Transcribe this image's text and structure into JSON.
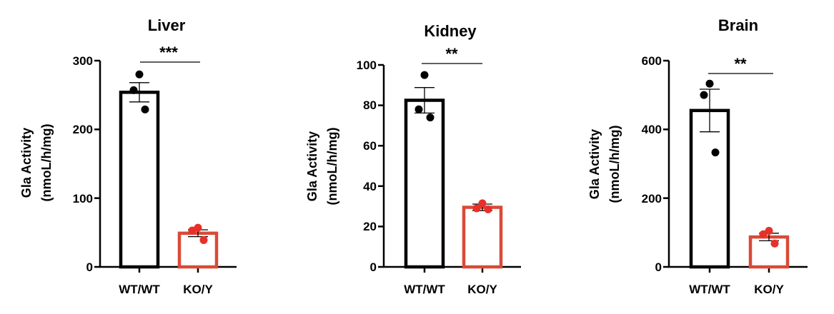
{
  "colors": {
    "wt": "#000000",
    "ko": "#d94a38",
    "ko_points": "#e8302a"
  },
  "chart_data": [
    {
      "type": "bar",
      "title": "Liver",
      "ylabel_line1": "Gla Activity",
      "ylabel_line2": "(nmoL/h/mg)",
      "categories": [
        "WT/WT",
        "KO/Y"
      ],
      "ylim": [
        0,
        300
      ],
      "yticks": [
        0,
        100,
        200,
        300
      ],
      "ytick_labels": [
        "0",
        "100",
        "200",
        "300"
      ],
      "bars": [
        {
          "group": "WT/WT",
          "mean": 254,
          "sem": 14,
          "points": [
            280,
            257,
            229
          ]
        },
        {
          "group": "KO/Y",
          "mean": 49,
          "sem": 5,
          "points": [
            57,
            53,
            39
          ]
        }
      ],
      "significance": "***"
    },
    {
      "type": "bar",
      "title": "Kidney",
      "ylabel_line1": "Gla Activity",
      "ylabel_line2": "(nmoL/h/mg)",
      "categories": [
        "WT/WT",
        "KO/Y"
      ],
      "ylim": [
        0,
        100
      ],
      "yticks": [
        0,
        20,
        40,
        60,
        80,
        100
      ],
      "ytick_labels": [
        "0",
        "20",
        "40",
        "60",
        "80",
        "100"
      ],
      "bars": [
        {
          "group": "WT/WT",
          "mean": 82.5,
          "sem": 6.3,
          "points": [
            95,
            78,
            74
          ]
        },
        {
          "group": "KO/Y",
          "mean": 29.5,
          "sem": 1.6,
          "points": [
            31.5,
            29,
            28.5
          ]
        }
      ],
      "significance": "**"
    },
    {
      "type": "bar",
      "title": "Brain",
      "ylabel_line1": "Gla Activity",
      "ylabel_line2": "(nmoL/h/mg)",
      "categories": [
        "WT/WT",
        "KO/Y"
      ],
      "ylim": [
        0,
        600
      ],
      "yticks": [
        0,
        200,
        400,
        600
      ],
      "ytick_labels": [
        "0",
        "200",
        "400",
        "600"
      ],
      "bars": [
        {
          "group": "WT/WT",
          "mean": 455,
          "sem": 62,
          "points": [
            533,
            500,
            333
          ]
        },
        {
          "group": "KO/Y",
          "mean": 87,
          "sem": 11,
          "points": [
            105,
            95,
            68
          ]
        }
      ],
      "significance": "**"
    }
  ]
}
